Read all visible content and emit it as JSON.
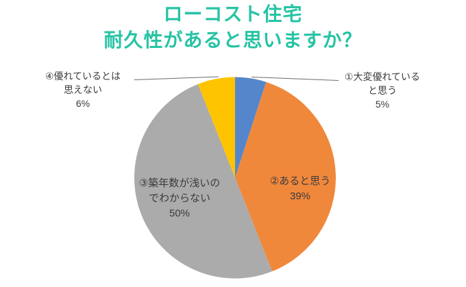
{
  "title": {
    "line1": "ローコスト住宅",
    "line2": "耐久性があると思いますか？",
    "color": "#26C3A4"
  },
  "chart_data": {
    "type": "pie",
    "title": "ローコスト住宅 耐久性があると思いますか？",
    "start_angle_deg": 0,
    "direction": "clockwise",
    "legend": "none",
    "background": "#FFFFFF",
    "slices": [
      {
        "label": "①大変優れていると思う",
        "pct": 5,
        "color": "#5586CB",
        "label_placement": "outside-right",
        "display_lines": [
          "①大変優れている",
          "と思う"
        ],
        "pct_label": "5%"
      },
      {
        "label": "②あると思う",
        "pct": 39,
        "color": "#F0883C",
        "label_placement": "inside",
        "display_lines": [
          "②あると思う"
        ],
        "pct_label": "39%"
      },
      {
        "label": "③築年数が浅いのでわからない",
        "pct": 50,
        "color": "#ABABAB",
        "label_placement": "inside",
        "display_lines": [
          "③築年数が浅いの",
          "でわからない"
        ],
        "pct_label": "50%"
      },
      {
        "label": "④優れているとは思えない",
        "pct": 6,
        "color": "#FFC400",
        "label_placement": "outside-left",
        "display_lines": [
          "④優れているとは",
          "思えない"
        ],
        "pct_label": "6%"
      }
    ]
  }
}
